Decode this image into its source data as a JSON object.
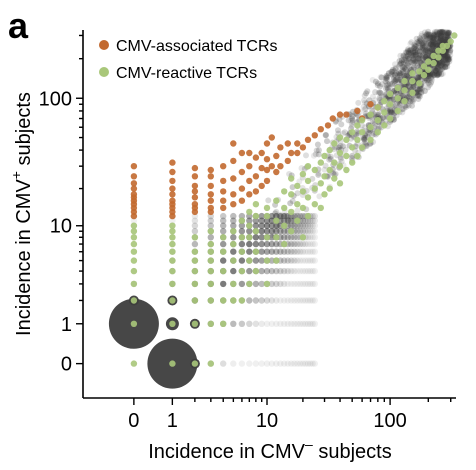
{
  "panel_letter": "a",
  "chart_data": {
    "type": "scatter",
    "xlabel": "Incidence in CMV",
    "xlabel_superscript": "–",
    "xlabel_suffix": " subjects",
    "ylabel": "Incidence in CMV",
    "ylabel_superscript": "+",
    "ylabel_suffix": " subjects",
    "x_scale": "log1p",
    "y_scale": "log1p",
    "xlim": [
      -0.6,
      330
    ],
    "ylim": [
      -0.45,
      330
    ],
    "x_ticks": [
      {
        "value": 0,
        "label": "0"
      },
      {
        "value": 1,
        "label": "1"
      },
      {
        "value": 10,
        "label": "10"
      },
      {
        "value": 100,
        "label": "100"
      }
    ],
    "y_ticks": [
      {
        "value": 0,
        "label": "0"
      },
      {
        "value": 1,
        "label": "1"
      },
      {
        "value": 10,
        "label": "10"
      },
      {
        "value": 100,
        "label": "100"
      }
    ],
    "grid": false,
    "legend_position": "top-left",
    "colors": {
      "background_tcrs": "#3d3d3d",
      "associated": "#c2692f",
      "reactive": "#a9c77a"
    },
    "legend": [
      {
        "label": "CMV-associated TCRs",
        "color": "#c2692f"
      },
      {
        "label": "CMV-reactive TCRs",
        "color": "#a9c77a"
      }
    ],
    "background_bubbles": [
      {
        "x": 0,
        "y": 1,
        "scale": "very large"
      },
      {
        "x": 1,
        "y": 0,
        "scale": "very large"
      },
      {
        "x": 1,
        "y": 1,
        "scale": "medium"
      },
      {
        "x": 2,
        "y": 0,
        "scale": "small"
      },
      {
        "x": 0,
        "y": 2,
        "scale": "small"
      },
      {
        "x": 1,
        "y": 2,
        "scale": "small"
      },
      {
        "x": 2,
        "y": 1,
        "scale": "small"
      }
    ],
    "background_density": "dense grey cloud of TCR points along the diagonal, x from 0 to ~300, y from 0 to ~300, sparser at high values",
    "series": [
      {
        "name": "CMV-associated TCRs",
        "points": [
          [
            0,
            12
          ],
          [
            0,
            13
          ],
          [
            0,
            14
          ],
          [
            0,
            15
          ],
          [
            0,
            16
          ],
          [
            0,
            17
          ],
          [
            0,
            18
          ],
          [
            0,
            20
          ],
          [
            0,
            22
          ],
          [
            0,
            25
          ],
          [
            0,
            30
          ],
          [
            1,
            12
          ],
          [
            1,
            13
          ],
          [
            1,
            14
          ],
          [
            1,
            15
          ],
          [
            1,
            16
          ],
          [
            1,
            18
          ],
          [
            1,
            20
          ],
          [
            1,
            23
          ],
          [
            1,
            27
          ],
          [
            1,
            32
          ],
          [
            2,
            13
          ],
          [
            2,
            14
          ],
          [
            2,
            15
          ],
          [
            2,
            17
          ],
          [
            2,
            19
          ],
          [
            2,
            21
          ],
          [
            2,
            25
          ],
          [
            2,
            29
          ],
          [
            3,
            13
          ],
          [
            3,
            14
          ],
          [
            3,
            16
          ],
          [
            3,
            18
          ],
          [
            3,
            21
          ],
          [
            3,
            25
          ],
          [
            3,
            28
          ],
          [
            4,
            14
          ],
          [
            4,
            16
          ],
          [
            4,
            19
          ],
          [
            4,
            23
          ],
          [
            4,
            30
          ],
          [
            5,
            15
          ],
          [
            5,
            18
          ],
          [
            5,
            24
          ],
          [
            5,
            33
          ],
          [
            5,
            45
          ],
          [
            6,
            16
          ],
          [
            6,
            20
          ],
          [
            6,
            27
          ],
          [
            6,
            38
          ],
          [
            7,
            18
          ],
          [
            7,
            23
          ],
          [
            7,
            30
          ],
          [
            7,
            38
          ],
          [
            8,
            19
          ],
          [
            8,
            25
          ],
          [
            8,
            35
          ],
          [
            9,
            21
          ],
          [
            9,
            29
          ],
          [
            9,
            38
          ],
          [
            10,
            23
          ],
          [
            10,
            28
          ],
          [
            10,
            34
          ],
          [
            10,
            45
          ],
          [
            11,
            30
          ],
          [
            11,
            50
          ],
          [
            12,
            27
          ],
          [
            12,
            36
          ],
          [
            13,
            30
          ],
          [
            13,
            42
          ],
          [
            15,
            33
          ],
          [
            15,
            45
          ],
          [
            16,
            38
          ],
          [
            18,
            38
          ],
          [
            18,
            45
          ],
          [
            20,
            42
          ],
          [
            22,
            48
          ],
          [
            25,
            52
          ],
          [
            28,
            58
          ],
          [
            32,
            62
          ],
          [
            35,
            70
          ],
          [
            40,
            75
          ],
          [
            45,
            75
          ],
          [
            55,
            80
          ],
          [
            60,
            70
          ],
          [
            70,
            90
          ],
          [
            80,
            85
          ]
        ]
      },
      {
        "name": "CMV-reactive TCRs",
        "points": [
          [
            0,
            0
          ],
          [
            0,
            1
          ],
          [
            0,
            2
          ],
          [
            0,
            3
          ],
          [
            0,
            4
          ],
          [
            0,
            5
          ],
          [
            0,
            6
          ],
          [
            0,
            7
          ],
          [
            0,
            8
          ],
          [
            0,
            9
          ],
          [
            0,
            10
          ],
          [
            1,
            0
          ],
          [
            1,
            1
          ],
          [
            1,
            2
          ],
          [
            1,
            3
          ],
          [
            1,
            4
          ],
          [
            1,
            5
          ],
          [
            1,
            6
          ],
          [
            1,
            7
          ],
          [
            1,
            8
          ],
          [
            1,
            9
          ],
          [
            1,
            10
          ],
          [
            2,
            0
          ],
          [
            2,
            1
          ],
          [
            2,
            2
          ],
          [
            2,
            3
          ],
          [
            2,
            4
          ],
          [
            2,
            5
          ],
          [
            2,
            6
          ],
          [
            2,
            8
          ],
          [
            3,
            0
          ],
          [
            3,
            1
          ],
          [
            3,
            2
          ],
          [
            3,
            3
          ],
          [
            3,
            4
          ],
          [
            3,
            5
          ],
          [
            3,
            6
          ],
          [
            3,
            7
          ],
          [
            3,
            9
          ],
          [
            4,
            1
          ],
          [
            4,
            2
          ],
          [
            4,
            4
          ],
          [
            4,
            6
          ],
          [
            4,
            8
          ],
          [
            5,
            2
          ],
          [
            5,
            3
          ],
          [
            5,
            5
          ],
          [
            5,
            7
          ],
          [
            5,
            9
          ],
          [
            6,
            2
          ],
          [
            6,
            4
          ],
          [
            6,
            6
          ],
          [
            6,
            8
          ],
          [
            6,
            11
          ],
          [
            7,
            3
          ],
          [
            7,
            5
          ],
          [
            7,
            8
          ],
          [
            7,
            10
          ],
          [
            7,
            13
          ],
          [
            8,
            4
          ],
          [
            8,
            6
          ],
          [
            8,
            9
          ],
          [
            8,
            12
          ],
          [
            8,
            15
          ],
          [
            10,
            3
          ],
          [
            10,
            5
          ],
          [
            10,
            8
          ],
          [
            10,
            12
          ],
          [
            10,
            14
          ],
          [
            12,
            5
          ],
          [
            12,
            8
          ],
          [
            12,
            11
          ],
          [
            12,
            16
          ],
          [
            14,
            7
          ],
          [
            14,
            10
          ],
          [
            14,
            14
          ],
          [
            14,
            19
          ],
          [
            16,
            9
          ],
          [
            16,
            13
          ],
          [
            16,
            18
          ],
          [
            16,
            24
          ],
          [
            18,
            11
          ],
          [
            18,
            15
          ],
          [
            18,
            21
          ],
          [
            20,
            8
          ],
          [
            20,
            14
          ],
          [
            20,
            19
          ],
          [
            20,
            26
          ],
          [
            22,
            12
          ],
          [
            22,
            17
          ],
          [
            22,
            23
          ],
          [
            22,
            30
          ],
          [
            25,
            15
          ],
          [
            25,
            20
          ],
          [
            25,
            28
          ],
          [
            28,
            14
          ],
          [
            28,
            22
          ],
          [
            28,
            32
          ],
          [
            30,
            18
          ],
          [
            30,
            25
          ],
          [
            30,
            36
          ],
          [
            33,
            20
          ],
          [
            33,
            28
          ],
          [
            33,
            40
          ],
          [
            36,
            24
          ],
          [
            36,
            32
          ],
          [
            36,
            45
          ],
          [
            40,
            22
          ],
          [
            40,
            30
          ],
          [
            40,
            38
          ],
          [
            40,
            50
          ],
          [
            45,
            28
          ],
          [
            45,
            36
          ],
          [
            45,
            48
          ],
          [
            50,
            32
          ],
          [
            50,
            42
          ],
          [
            50,
            55
          ],
          [
            55,
            36
          ],
          [
            55,
            48
          ],
          [
            55,
            62
          ],
          [
            60,
            42
          ],
          [
            60,
            55
          ],
          [
            60,
            68
          ],
          [
            70,
            48
          ],
          [
            70,
            60
          ],
          [
            70,
            75
          ],
          [
            80,
            55
          ],
          [
            80,
            68
          ],
          [
            80,
            85
          ],
          [
            90,
            62
          ],
          [
            90,
            78
          ],
          [
            90,
            95
          ],
          [
            100,
            70
          ],
          [
            100,
            90
          ],
          [
            100,
            108
          ],
          [
            115,
            80
          ],
          [
            115,
            100
          ],
          [
            115,
            120
          ],
          [
            130,
            95
          ],
          [
            130,
            115
          ],
          [
            130,
            135
          ],
          [
            150,
            110
          ],
          [
            150,
            135
          ],
          [
            150,
            155
          ],
          [
            170,
            130
          ],
          [
            170,
            160
          ],
          [
            185,
            150
          ],
          [
            185,
            175
          ],
          [
            200,
            165
          ],
          [
            200,
            190
          ],
          [
            220,
            185
          ],
          [
            220,
            210
          ],
          [
            240,
            205
          ],
          [
            240,
            230
          ],
          [
            260,
            230
          ],
          [
            260,
            250
          ],
          [
            280,
            250
          ],
          [
            300,
            270
          ],
          [
            320,
            300
          ]
        ]
      }
    ]
  }
}
